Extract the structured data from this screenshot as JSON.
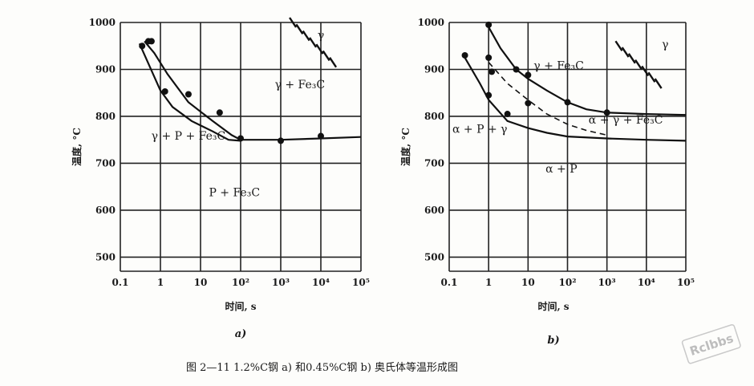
{
  "chart_data": [
    {
      "type": "line",
      "panel_label": "a)",
      "xlabel": "时间, s",
      "ylabel": "温度, °C",
      "x_scale": "log",
      "xlim": [
        0.1,
        100000
      ],
      "ylim": [
        470,
        1000
      ],
      "y_ticks": [
        "1000",
        "900",
        "800",
        "700",
        "600",
        "500"
      ],
      "x_ticks": [
        {
          "value": 0.1,
          "label": "0.1"
        },
        {
          "value": 1,
          "label": "1"
        },
        {
          "value": 10,
          "label": "10"
        },
        {
          "value": 100,
          "label": "10²"
        },
        {
          "value": 1000,
          "label": "10³"
        },
        {
          "value": 10000,
          "label": "10⁴"
        },
        {
          "value": 100000,
          "label": "10⁵"
        }
      ],
      "region_labels": [
        {
          "text": "γ",
          "x": 10000,
          "y": 965
        },
        {
          "text": "γ + Fe₃C",
          "x": 3000,
          "y": 860
        },
        {
          "text": "γ + P + Fe₃C",
          "x": 5,
          "y": 750
        },
        {
          "text": "P + Fe₃C",
          "x": 70,
          "y": 630
        }
      ],
      "hatched_region": {
        "x_range": [
          2000,
          20000
        ],
        "y_range": [
          915,
          1000
        ]
      },
      "series": [
        {
          "style": "solid",
          "points": [
            [
              0.4,
              960
            ],
            [
              0.7,
              935
            ],
            [
              1.5,
              890
            ],
            [
              5,
              830
            ],
            [
              20,
              790
            ],
            [
              60,
              760
            ],
            [
              100,
              750
            ],
            [
              1000,
              750
            ],
            [
              10000,
              753
            ],
            [
              100000,
              756
            ]
          ]
        },
        {
          "style": "solid",
          "points": [
            [
              0.3,
              955
            ],
            [
              1,
              855
            ],
            [
              2,
              820
            ],
            [
              6,
              790
            ],
            [
              20,
              768
            ],
            [
              50,
              750
            ],
            [
              100,
              748
            ]
          ]
        }
      ],
      "points": [
        [
          0.35,
          950
        ],
        [
          0.5,
          960
        ],
        [
          0.6,
          960
        ],
        [
          1.3,
          853
        ],
        [
          5,
          847
        ],
        [
          30,
          808
        ],
        [
          100,
          753
        ],
        [
          1000,
          748
        ],
        [
          10000,
          758
        ]
      ]
    },
    {
      "type": "line",
      "panel_label": "b)",
      "xlabel": "时间, s",
      "ylabel": "温度, °C",
      "x_scale": "log",
      "xlim": [
        0.1,
        100000
      ],
      "ylim": [
        470,
        1000
      ],
      "y_ticks": [
        "1000",
        "900",
        "800",
        "700",
        "600",
        "500"
      ],
      "x_ticks": [
        {
          "value": 0.1,
          "label": "0.1"
        },
        {
          "value": 1,
          "label": "1"
        },
        {
          "value": 10,
          "label": "10"
        },
        {
          "value": 100,
          "label": "10²"
        },
        {
          "value": 1000,
          "label": "10³"
        },
        {
          "value": 10000,
          "label": "10⁴"
        },
        {
          "value": 100000,
          "label": "10⁵"
        }
      ],
      "region_labels": [
        {
          "text": "γ",
          "x": 30000,
          "y": 945
        },
        {
          "text": "γ + Fe₃C",
          "x": 60,
          "y": 900
        },
        {
          "text": "α + γ + Fe₃C",
          "x": 3000,
          "y": 785
        },
        {
          "text": "α + P + γ",
          "x": 0.6,
          "y": 765
        },
        {
          "text": "α + P",
          "x": 70,
          "y": 680
        }
      ],
      "hatched_region": {
        "x_range": [
          2000,
          20000
        ],
        "y_range": [
          870,
          950
        ]
      },
      "series": [
        {
          "style": "solid",
          "points": [
            [
              1,
              990
            ],
            [
              2,
              945
            ],
            [
              5,
              900
            ],
            [
              10,
              880
            ],
            [
              30,
              855
            ],
            [
              100,
              830
            ],
            [
              300,
              815
            ],
            [
              1000,
              808
            ],
            [
              10000,
              805
            ],
            [
              100000,
              803
            ]
          ]
        },
        {
          "style": "dashed",
          "points": [
            [
              1,
              915
            ],
            [
              3,
              870
            ],
            [
              10,
              835
            ],
            [
              30,
              805
            ],
            [
              100,
              783
            ],
            [
              300,
              770
            ],
            [
              1000,
              760
            ]
          ]
        },
        {
          "style": "solid",
          "points": [
            [
              0.25,
              925
            ],
            [
              0.6,
              870
            ],
            [
              1,
              835
            ],
            [
              3,
              790
            ],
            [
              10,
              775
            ],
            [
              30,
              765
            ],
            [
              100,
              757
            ],
            [
              1000,
              753
            ],
            [
              10000,
              750
            ],
            [
              100000,
              748
            ]
          ]
        }
      ],
      "points": [
        [
          0.25,
          930
        ],
        [
          1,
          995
        ],
        [
          1,
          925
        ],
        [
          1.2,
          895
        ],
        [
          5,
          900
        ],
        [
          10,
          888
        ],
        [
          1,
          845
        ],
        [
          3,
          805
        ],
        [
          10,
          828
        ],
        [
          100,
          830
        ],
        [
          1000,
          808
        ]
      ]
    }
  ],
  "caption": "图 2—11   1.2%C钢   a)   和0.45%C钢   b)   奥氏体等温形成图",
  "watermark": "Rclbbs",
  "colors": {
    "ink": "#111111",
    "paper": "#fdfdfb"
  }
}
